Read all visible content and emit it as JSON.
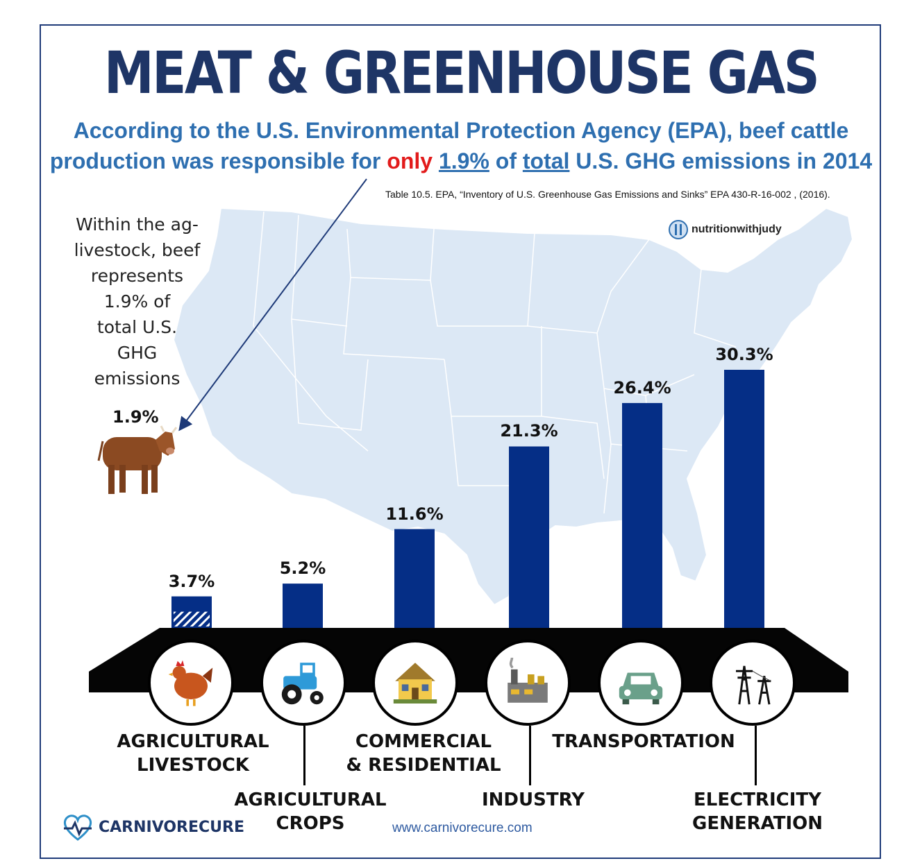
{
  "header": {
    "title": "MEAT & GREENHOUSE GAS",
    "subtitle_line1": "According to the U.S. Environmental Protection Agency (EPA), beef cattle",
    "subtitle_line2_a": "production was responsible for ",
    "subtitle_line2_only": "only",
    "subtitle_line2_pct": "1.9%",
    "subtitle_line2_of": " of ",
    "subtitle_line2_total": "total",
    "subtitle_line2_end": " U.S. GHG emissions in 2014",
    "source": "Table 10.5. EPA, “Inventory of U.S. Greenhouse Gas Emissions and Sinks” EPA 430-R-16-002 , (2016)."
  },
  "note": {
    "line1": "Within the ag-",
    "line2": "livestock, beef",
    "line3": "represents",
    "line4": "1.9% of",
    "line5": "total U.S.",
    "line6": "GHG",
    "line7": "emissions",
    "cow_label": "1.9%"
  },
  "logos": {
    "nutrition": "nutritionwithjudy",
    "brand": "CARNIVORECURE",
    "website": "www.carnivorecure.com"
  },
  "colors": {
    "bar": "#052e86",
    "title": "#1e3566",
    "subtitle": "#2e6fb0",
    "highlight": "#e21b1b",
    "map": "#dce8f5"
  },
  "chart_data": {
    "type": "bar",
    "categories": [
      "AGRICULTURAL LIVESTOCK",
      "AGRICULTURAL CROPS",
      "COMMERCIAL & RESIDENTIAL",
      "INDUSTRY",
      "TRANSPORTATION",
      "ELECTRICITY GENERATION"
    ],
    "category_lines": [
      [
        "AGRICULTURAL",
        "LIVESTOCK"
      ],
      [
        "AGRICULTURAL",
        "CROPS"
      ],
      [
        "COMMERCIAL",
        "& RESIDENTIAL"
      ],
      [
        "INDUSTRY"
      ],
      [
        "TRANSPORTATION"
      ],
      [
        "ELECTRICITY",
        "GENERATION"
      ]
    ],
    "values": [
      3.7,
      5.2,
      11.6,
      21.3,
      26.4,
      30.3
    ],
    "value_labels": [
      "3.7%",
      "5.2%",
      "11.6%",
      "21.3%",
      "26.4%",
      "30.3%"
    ],
    "beef_share": 1.9,
    "icons": [
      "chicken-icon",
      "tractor-icon",
      "house-icon",
      "factory-icon",
      "car-icon",
      "power-tower-icon"
    ],
    "unit": "%",
    "title": "",
    "xlabel": "",
    "ylabel": ""
  }
}
